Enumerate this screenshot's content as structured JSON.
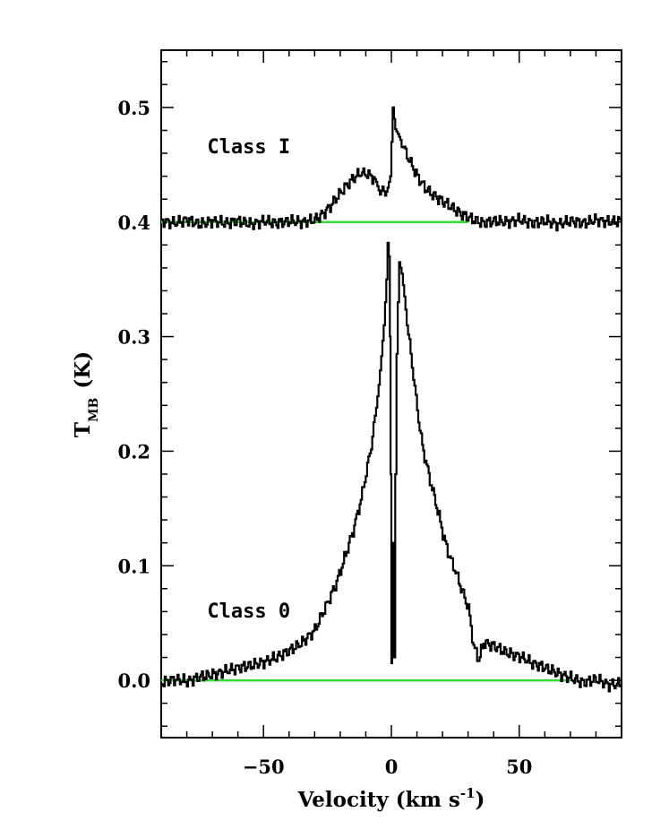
{
  "chart_data": {
    "type": "line",
    "xlabel": "Velocity (km s",
    "xlabel_sup": "-1",
    "xlabel_close": ")",
    "ylabel_main": "T",
    "ylabel_sub": "MB",
    "ylabel_unit": "(K)",
    "xlim": [
      -90,
      90
    ],
    "ylim": [
      -0.05,
      0.55
    ],
    "x_ticks": [
      -50,
      0,
      50
    ],
    "x_tick_labels": [
      "−50",
      "0",
      "50"
    ],
    "y_ticks": [
      0.0,
      0.1,
      0.2,
      0.3,
      0.4,
      0.5
    ],
    "y_tick_labels": [
      "0.0",
      "0.1",
      "0.2",
      "0.3",
      "0.4",
      "0.5"
    ],
    "grid": false,
    "baseline_color": "#33dd33",
    "line_color": "#000000",
    "annotations": [
      {
        "text": "Class I",
        "x": -72,
        "y": 0.46
      },
      {
        "text": "Class 0",
        "x": -72,
        "y": 0.055
      }
    ],
    "series": [
      {
        "label": "Class I",
        "baseline": 0.4,
        "baseline_x": [
          -90,
          30
        ],
        "x": [
          -90,
          -85,
          -80,
          -75,
          -70,
          -65,
          -60,
          -55,
          -50,
          -45,
          -40,
          -35,
          -30,
          -27,
          -24,
          -21,
          -18,
          -15,
          -12,
          -10,
          -8,
          -6,
          -4.5,
          -3.5,
          -2.5,
          -1.5,
          -0.5,
          0,
          0.5,
          1,
          1.5,
          2.5,
          4,
          6,
          8,
          10,
          13,
          16,
          20,
          24,
          28,
          32,
          36,
          40,
          45,
          50,
          55,
          60,
          65,
          70,
          75,
          80,
          85,
          90
        ],
        "y": [
          0.401,
          0.399,
          0.402,
          0.398,
          0.401,
          0.399,
          0.401,
          0.398,
          0.401,
          0.399,
          0.401,
          0.4,
          0.402,
          0.407,
          0.414,
          0.423,
          0.431,
          0.438,
          0.443,
          0.442,
          0.44,
          0.435,
          0.424,
          0.431,
          0.423,
          0.43,
          0.44,
          0.47,
          0.5,
          0.49,
          0.481,
          0.477,
          0.469,
          0.458,
          0.449,
          0.44,
          0.43,
          0.424,
          0.418,
          0.412,
          0.406,
          0.402,
          0.399,
          0.401,
          0.4,
          0.402,
          0.399,
          0.401,
          0.398,
          0.401,
          0.399,
          0.402,
          0.4,
          0.401
        ]
      },
      {
        "label": "Class 0",
        "baseline": 0.0,
        "baseline_x": [
          -90,
          70
        ],
        "x": [
          -90,
          -85,
          -80,
          -75,
          -70,
          -65,
          -60,
          -55,
          -50,
          -45,
          -40,
          -35,
          -30,
          -28,
          -25,
          -22,
          -20,
          -18,
          -15,
          -12,
          -10,
          -8,
          -6,
          -5,
          -4,
          -3,
          -2,
          -1.5,
          -1,
          -0.6,
          -0.3,
          0,
          0.3,
          0.6,
          1,
          1.5,
          2,
          2.5,
          3,
          4,
          5,
          6,
          8,
          10,
          12,
          15,
          18,
          20,
          22,
          25,
          28,
          30,
          32,
          34,
          36,
          40,
          45,
          50,
          55,
          60,
          65,
          70,
          75,
          80,
          85,
          90
        ],
        "y": [
          -0.002,
          0.001,
          -0.001,
          0.003,
          0.005,
          0.008,
          0.011,
          0.013,
          0.016,
          0.02,
          0.026,
          0.033,
          0.044,
          0.054,
          0.068,
          0.083,
          0.096,
          0.11,
          0.131,
          0.158,
          0.181,
          0.205,
          0.238,
          0.258,
          0.283,
          0.31,
          0.35,
          0.382,
          0.37,
          0.3,
          0.18,
          0.015,
          0.06,
          0.12,
          0.02,
          0.18,
          0.285,
          0.33,
          0.365,
          0.355,
          0.335,
          0.312,
          0.275,
          0.236,
          0.204,
          0.175,
          0.148,
          0.128,
          0.112,
          0.095,
          0.075,
          0.063,
          0.03,
          0.018,
          0.033,
          0.03,
          0.024,
          0.021,
          0.015,
          0.011,
          0.006,
          0.002,
          -0.002,
          0.001,
          -0.004,
          -0.003
        ]
      }
    ]
  }
}
